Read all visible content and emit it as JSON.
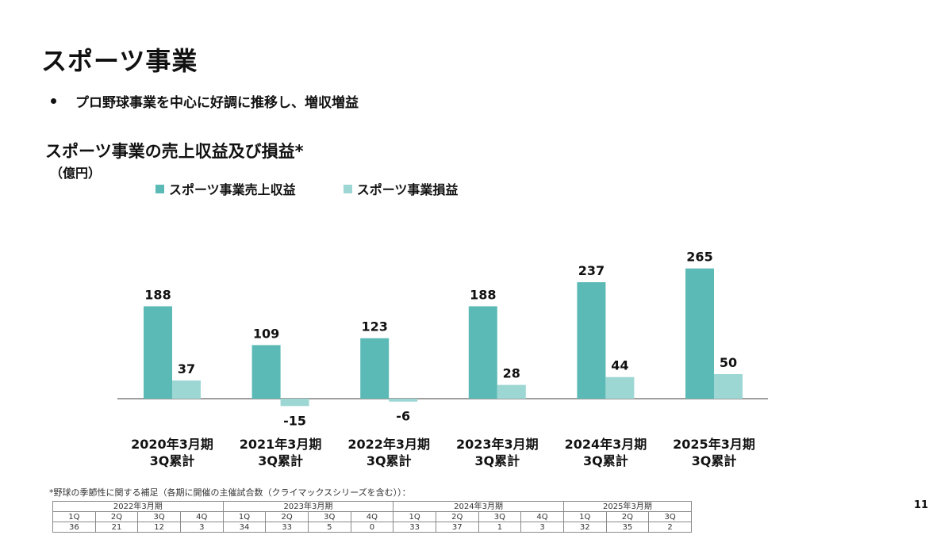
{
  "page": {
    "title": "スポーツ事業",
    "bullet": "プロ野球事業を中心に好調に推移し、増収増益",
    "chart_title": "スポーツ事業の売上収益及び損益*",
    "unit": "（億円）",
    "footnote": "*野球の季節性に関する補足（各期に開催の主催試合数（クライマックスシリーズを含む））：",
    "page_number": "11"
  },
  "colors": {
    "revenue": "#5bbab6",
    "profit": "#9dd7d4",
    "axis": "#7f7f7f"
  },
  "chart_data": {
    "type": "bar",
    "categories": [
      [
        "2020年3月期",
        "3Q累計"
      ],
      [
        "2021年3月期",
        "3Q累計"
      ],
      [
        "2022年3月期",
        "3Q累計"
      ],
      [
        "2023年3月期",
        "3Q累計"
      ],
      [
        "2024年3月期",
        "3Q累計"
      ],
      [
        "2025年3月期",
        "3Q累計"
      ]
    ],
    "series": [
      {
        "name": "スポーツ事業売上収益",
        "values": [
          188,
          109,
          123,
          188,
          237,
          265
        ]
      },
      {
        "name": "スポーツ事業損益",
        "values": [
          37,
          -15,
          -6,
          28,
          44,
          50
        ]
      }
    ],
    "title": "スポーツ事業の売上収益及び損益*",
    "ylabel": "（億円）",
    "legend": "top",
    "grid": false
  },
  "games_table": {
    "years": [
      "2022年3月期",
      "2023年3月期",
      "2024年3月期",
      "2025年3月期"
    ],
    "quarters": [
      [
        "1Q",
        "2Q",
        "3Q",
        "4Q"
      ],
      [
        "1Q",
        "2Q",
        "3Q",
        "4Q"
      ],
      [
        "1Q",
        "2Q",
        "3Q",
        "4Q"
      ],
      [
        "1Q",
        "2Q",
        "3Q"
      ]
    ],
    "values": [
      [
        "36",
        "21",
        "12",
        "3"
      ],
      [
        "34",
        "33",
        "5",
        "0"
      ],
      [
        "33",
        "37",
        "1",
        "3"
      ],
      [
        "32",
        "35",
        "2"
      ]
    ]
  }
}
